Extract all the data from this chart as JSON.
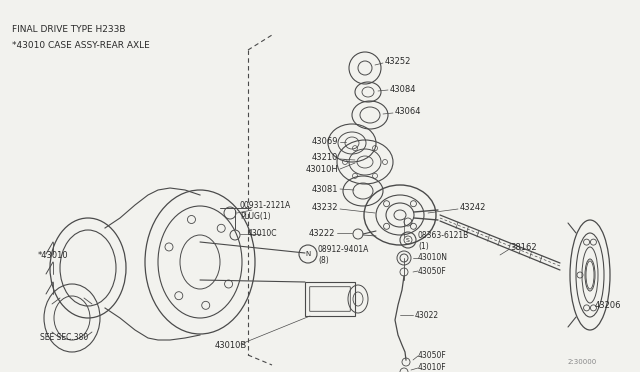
{
  "bg_color": "#f2f2ee",
  "line_color": "#4a4a4a",
  "text_color": "#2a2a2a",
  "header_line1": "FINAL DRIVE TYPE H233B",
  "header_line2": "*43010 CASE ASSY-REAR AXLE",
  "footer_text": "2:30000",
  "fig_w": 6.4,
  "fig_h": 3.72,
  "dpi": 100
}
